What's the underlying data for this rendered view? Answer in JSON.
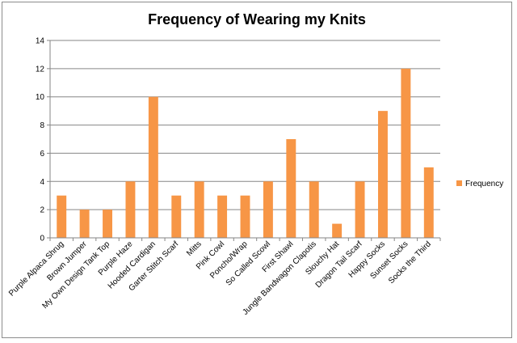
{
  "chart_data": {
    "type": "bar",
    "title": "Frequency of Wearing my Knits",
    "xlabel": "",
    "ylabel": "",
    "ylim": [
      0,
      14
    ],
    "yticks": [
      0,
      2,
      4,
      6,
      8,
      10,
      12,
      14
    ],
    "grid": true,
    "legend_position": "right",
    "categories": [
      "Purple Alpaca Shrug",
      "Brown Jumper",
      "My Own Design Tank Top",
      "Purple Haze",
      "Hooded Cardigan",
      "Garter Stitch Scarf",
      "Mitts",
      "Pink Cowl",
      "Poncho/Wrap",
      "So Called Scowl",
      "First Shawl",
      "Jungle Bandwagon Clapotis",
      "Slouchy Hat",
      "Dragon Tail Scarf",
      "Happy Socks",
      "Sunset Socks",
      "Socks the Third"
    ],
    "series": [
      {
        "name": "Frequency",
        "color": "#f79646",
        "values": [
          3,
          2,
          2,
          4,
          10,
          3,
          4,
          3,
          3,
          4,
          7,
          4,
          1,
          4,
          9,
          12,
          5
        ]
      }
    ]
  }
}
